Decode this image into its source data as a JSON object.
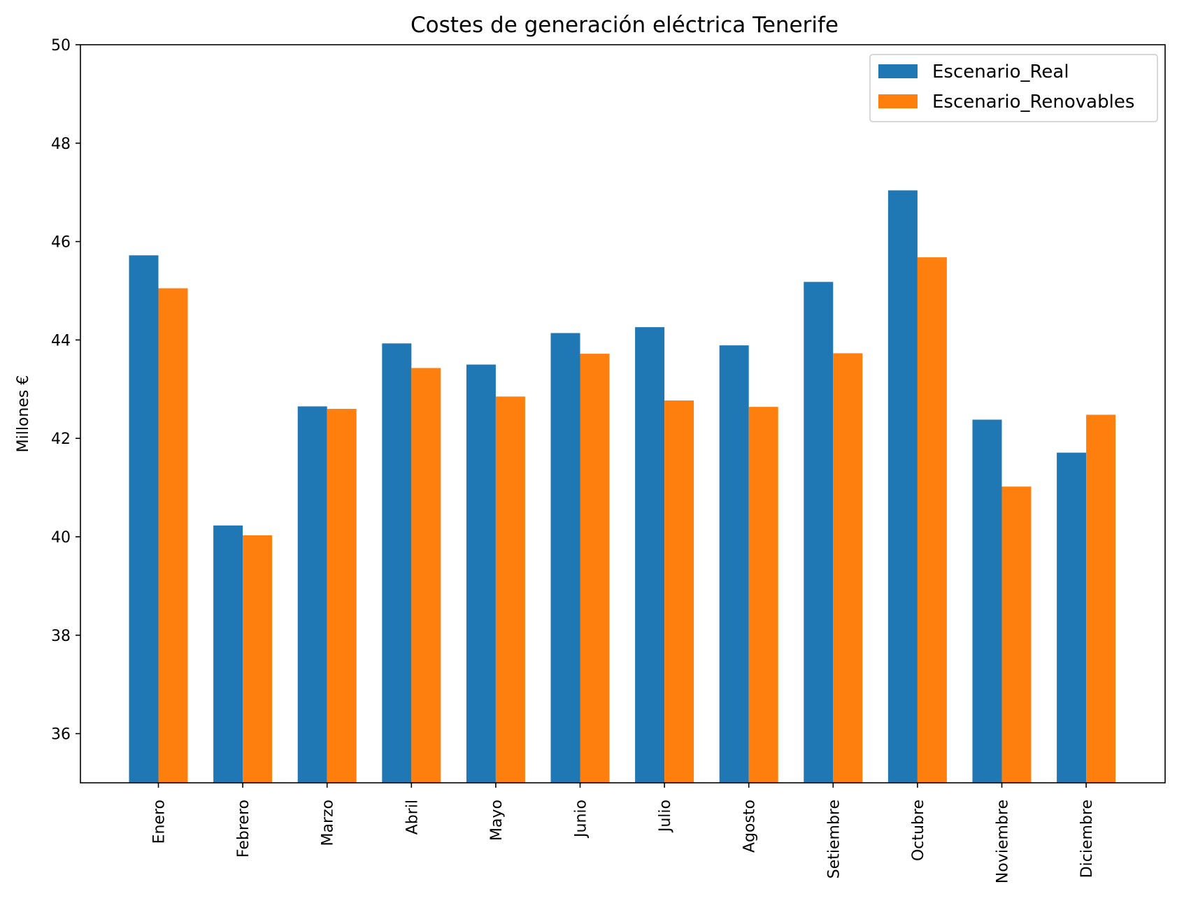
{
  "chart_data": {
    "type": "bar",
    "title": "Costes de generación eléctrica Tenerife",
    "xlabel": "",
    "ylabel": "Millones €",
    "ylim": [
      35,
      50
    ],
    "yticks": [
      36,
      38,
      40,
      42,
      44,
      46,
      48,
      50
    ],
    "grid": false,
    "legend_position": "top-right",
    "categories": [
      "Enero",
      "Febrero",
      "Marzo",
      "Abril",
      "Mayo",
      "Junio",
      "Julio",
      "Agosto",
      "Setiembre",
      "Octubre",
      "Noviembre",
      "Diciembre"
    ],
    "series": [
      {
        "name": "Escenario_Real",
        "color": "#1f77b4",
        "values": [
          45.72,
          40.23,
          42.65,
          43.93,
          43.5,
          44.14,
          44.26,
          43.89,
          45.18,
          47.04,
          42.38,
          41.71
        ]
      },
      {
        "name": "Escenario_Renovables",
        "color": "#ff7f0e",
        "values": [
          45.05,
          40.03,
          42.6,
          43.43,
          42.85,
          43.72,
          42.77,
          42.64,
          43.73,
          45.68,
          41.02,
          42.48
        ]
      }
    ]
  }
}
